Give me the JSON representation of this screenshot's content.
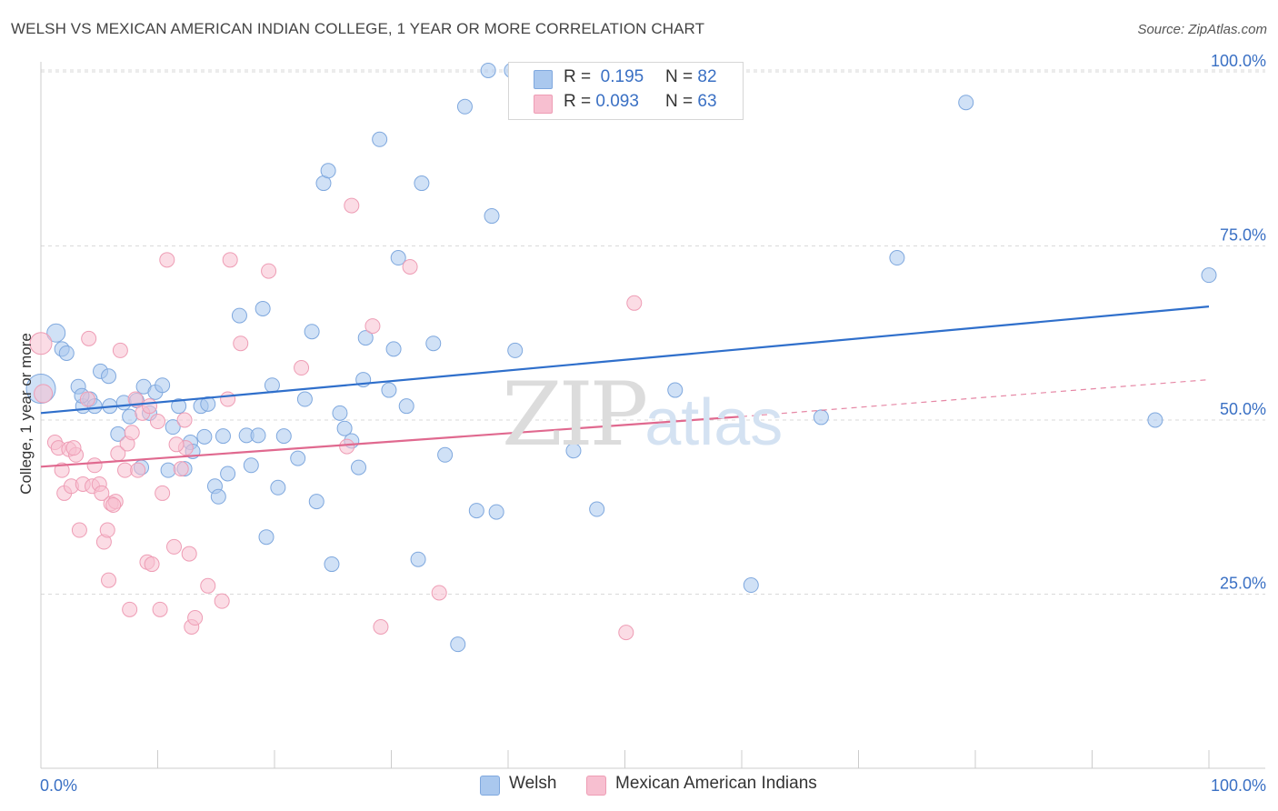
{
  "title": "WELSH VS MEXICAN AMERICAN INDIAN COLLEGE, 1 YEAR OR MORE CORRELATION CHART",
  "source": "Source: ZipAtlas.com",
  "watermark": {
    "part1": "ZIP",
    "part2": "atlas"
  },
  "legend": {
    "r_label": "R =",
    "n_label": "N =",
    "rows": [
      {
        "series": "Welsh",
        "r": "0.195",
        "n": "82"
      },
      {
        "series": "Mexican American Indians",
        "r": "0.093",
        "n": "63"
      }
    ]
  },
  "bottom_legend": [
    "Welsh",
    "Mexican American Indians"
  ],
  "colors": {
    "welsh_fill": "#aac8ee",
    "welsh_stroke": "#7fa8de",
    "welsh_line": "#2f6fcb",
    "mex_fill": "#f7bfd0",
    "mex_stroke": "#ee9db5",
    "mex_line": "#e0698f",
    "axis_text": "#3a70c4",
    "grid": "#d9d9d9"
  },
  "chart_data": {
    "type": "scatter",
    "title": "WELSH VS MEXICAN AMERICAN INDIAN COLLEGE, 1 YEAR OR MORE CORRELATION CHART",
    "xlabel": "",
    "ylabel": "College, 1 year or more",
    "xlim": [
      0,
      100
    ],
    "ylim": [
      0,
      104
    ],
    "x_tick_labels": [
      {
        "value": 0,
        "label": "0.0%"
      },
      {
        "value": 100,
        "label": "100.0%"
      }
    ],
    "y_tick_labels": [
      {
        "value": 25,
        "label": "25.0%"
      },
      {
        "value": 50,
        "label": "50.0%"
      },
      {
        "value": 75,
        "label": "75.0%"
      },
      {
        "value": 100,
        "label": "100.0%"
      }
    ],
    "y_gridlines": [
      25,
      50,
      75,
      100
    ],
    "series": [
      {
        "name": "Welsh",
        "r": 0.195,
        "n": 82,
        "trend": {
          "x": [
            0,
            100
          ],
          "y": [
            51.0,
            66.3
          ]
        },
        "points": [
          [
            0,
            54.5,
            16
          ],
          [
            1.3,
            62.5,
            10
          ],
          [
            1.8,
            60.2,
            8
          ],
          [
            2.2,
            59.6,
            8
          ],
          [
            3.2,
            54.8,
            8
          ],
          [
            3.6,
            52,
            8
          ],
          [
            4.2,
            53,
            8
          ],
          [
            4.6,
            52,
            8
          ],
          [
            5.1,
            57,
            8
          ],
          [
            5.8,
            56.3,
            8
          ],
          [
            5.9,
            52,
            8
          ],
          [
            6.6,
            48,
            8
          ],
          [
            7.1,
            52.5,
            8
          ],
          [
            7.6,
            50.5,
            8
          ],
          [
            8.2,
            52.8,
            8
          ],
          [
            8.6,
            43.2,
            8
          ],
          [
            8.8,
            54.8,
            8
          ],
          [
            9.3,
            51,
            8
          ],
          [
            9.8,
            54,
            8
          ],
          [
            10.4,
            55,
            8
          ],
          [
            10.9,
            42.8,
            8
          ],
          [
            11.3,
            49,
            8
          ],
          [
            11.8,
            52,
            8
          ],
          [
            12.3,
            43,
            8
          ],
          [
            12.8,
            46.8,
            8
          ],
          [
            13,
            45.5,
            8
          ],
          [
            13.7,
            52,
            8
          ],
          [
            14.3,
            52.3,
            8
          ],
          [
            14.9,
            40.5,
            8
          ],
          [
            15.2,
            39,
            8
          ],
          [
            15.6,
            47.7,
            8
          ],
          [
            16,
            42.3,
            8
          ],
          [
            17,
            65,
            8
          ],
          [
            17.6,
            47.8,
            8
          ],
          [
            18,
            43.5,
            8
          ],
          [
            18.6,
            47.8,
            8
          ],
          [
            19,
            66,
            8
          ],
          [
            19.3,
            33.2,
            8
          ],
          [
            19.8,
            55,
            8
          ],
          [
            20.3,
            40.3,
            8
          ],
          [
            20.8,
            47.7,
            8
          ],
          [
            22,
            44.5,
            8
          ],
          [
            22.6,
            53,
            8
          ],
          [
            23.2,
            62.7,
            8
          ],
          [
            23.6,
            38.3,
            8
          ],
          [
            24.2,
            84,
            8
          ],
          [
            24.6,
            85.8,
            8
          ],
          [
            24.9,
            29.3,
            8
          ],
          [
            25.6,
            51,
            8
          ],
          [
            26,
            48.8,
            8
          ],
          [
            26.6,
            47,
            8
          ],
          [
            27.2,
            43.2,
            8
          ],
          [
            27.6,
            55.8,
            8
          ],
          [
            27.8,
            61.8,
            8
          ],
          [
            29,
            90.3,
            8
          ],
          [
            29.8,
            54.3,
            8
          ],
          [
            30.2,
            60.2,
            8
          ],
          [
            30.6,
            73.3,
            8
          ],
          [
            31.3,
            52,
            8
          ],
          [
            32.3,
            30,
            8
          ],
          [
            32.6,
            84,
            8
          ],
          [
            33.6,
            61,
            8
          ],
          [
            34.6,
            45,
            8
          ],
          [
            36.3,
            95,
            8
          ],
          [
            37.3,
            37,
            8
          ],
          [
            38.3,
            100.2,
            8
          ],
          [
            38.6,
            79.3,
            8
          ],
          [
            39,
            36.8,
            8
          ],
          [
            40.3,
            100.2,
            8
          ],
          [
            40.6,
            60,
            8
          ],
          [
            45.6,
            45.6,
            8
          ],
          [
            47.6,
            37.2,
            8
          ],
          [
            35.7,
            17.8,
            8
          ],
          [
            54.3,
            54.3,
            8
          ],
          [
            60.8,
            26.3,
            8
          ],
          [
            66.8,
            50.4,
            8
          ],
          [
            73.3,
            73.3,
            8
          ],
          [
            79.2,
            95.6,
            8
          ],
          [
            95.4,
            50,
            8
          ],
          [
            100,
            70.8,
            8
          ],
          [
            3.5,
            53.5,
            8
          ],
          [
            14,
            47.6,
            8
          ]
        ]
      },
      {
        "name": "Mexican American Indians",
        "r": 0.093,
        "n": 63,
        "trend": {
          "x": [
            0,
            60
          ],
          "y": [
            43.3,
            50.5
          ]
        },
        "trend_extension": {
          "x": [
            60,
            100
          ],
          "y": [
            50.5,
            55.8
          ]
        },
        "points": [
          [
            0,
            61,
            12
          ],
          [
            0.2,
            53.8,
            10
          ],
          [
            1.2,
            46.8,
            8
          ],
          [
            1.5,
            46,
            8
          ],
          [
            1.8,
            42.8,
            8
          ],
          [
            2,
            39.5,
            8
          ],
          [
            2.4,
            45.8,
            8
          ],
          [
            2.6,
            40.5,
            8
          ],
          [
            3,
            45,
            8
          ],
          [
            3.3,
            34.2,
            8
          ],
          [
            3.6,
            40.8,
            8
          ],
          [
            4,
            53,
            8
          ],
          [
            4.1,
            61.7,
            8
          ],
          [
            4.4,
            40.5,
            8
          ],
          [
            4.6,
            43.5,
            8
          ],
          [
            5,
            40.8,
            8
          ],
          [
            5.2,
            39.5,
            8
          ],
          [
            5.4,
            32.5,
            8
          ],
          [
            5.7,
            34.2,
            8
          ],
          [
            5.8,
            27,
            8
          ],
          [
            6,
            38,
            8
          ],
          [
            6.4,
            38.3,
            8
          ],
          [
            6.6,
            45.2,
            8
          ],
          [
            6.8,
            60,
            8
          ],
          [
            7.2,
            42.8,
            8
          ],
          [
            7.4,
            46.6,
            8
          ],
          [
            7.6,
            22.8,
            8
          ],
          [
            7.8,
            48.2,
            8
          ],
          [
            8.1,
            53,
            8
          ],
          [
            8.3,
            42.8,
            8
          ],
          [
            8.7,
            51,
            8
          ],
          [
            9.1,
            29.6,
            8
          ],
          [
            9.5,
            29.3,
            8
          ],
          [
            10,
            49.8,
            8
          ],
          [
            10.2,
            22.8,
            8
          ],
          [
            10.4,
            39.5,
            8
          ],
          [
            10.8,
            73,
            8
          ],
          [
            11.4,
            31.8,
            8
          ],
          [
            12,
            43,
            8
          ],
          [
            12.3,
            50,
            8
          ],
          [
            12.4,
            46,
            8
          ],
          [
            12.7,
            30.8,
            8
          ],
          [
            12.9,
            20.3,
            8
          ],
          [
            13.2,
            21.6,
            8
          ],
          [
            14.3,
            26.2,
            8
          ],
          [
            15.5,
            24,
            8
          ],
          [
            16,
            53,
            8
          ],
          [
            16.2,
            73,
            8
          ],
          [
            17.1,
            61,
            8
          ],
          [
            19.5,
            71.4,
            8
          ],
          [
            22.3,
            57.5,
            8
          ],
          [
            26.2,
            46.2,
            8
          ],
          [
            26.6,
            80.8,
            8
          ],
          [
            28.4,
            63.5,
            8
          ],
          [
            29.1,
            20.3,
            8
          ],
          [
            31.6,
            72,
            8
          ],
          [
            34.1,
            25.2,
            8
          ],
          [
            50.1,
            19.5,
            8
          ],
          [
            50.8,
            66.8,
            8
          ],
          [
            6.2,
            37.8,
            8
          ],
          [
            9.3,
            52,
            8
          ],
          [
            2.8,
            46,
            8
          ],
          [
            11.6,
            46.5,
            8
          ]
        ]
      }
    ]
  }
}
